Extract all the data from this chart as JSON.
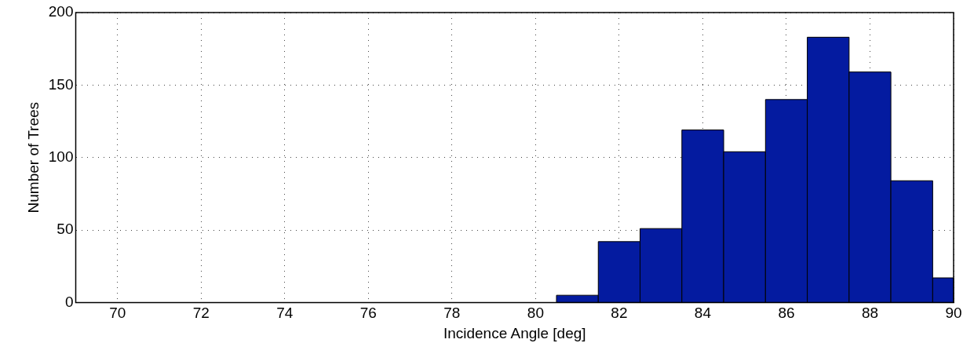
{
  "chart_data": {
    "type": "histogram",
    "xlabel": "Incidence Angle [deg]",
    "ylabel": "Number of Trees",
    "bins": [
      80.5,
      81.5,
      82.5,
      83.5,
      84.5,
      85.5,
      86.5,
      87.5,
      88.5,
      89.5,
      90
    ],
    "values": [
      5,
      42,
      51,
      119,
      104,
      140,
      183,
      159,
      84,
      17
    ],
    "color": "#041ba0",
    "xlim": [
      69,
      90
    ],
    "xticks": [
      70,
      72,
      74,
      76,
      78,
      80,
      82,
      84,
      86,
      88,
      90
    ],
    "ylim": [
      0,
      200
    ],
    "yticks": [
      0,
      50,
      100,
      150,
      200
    ],
    "grid": true
  }
}
